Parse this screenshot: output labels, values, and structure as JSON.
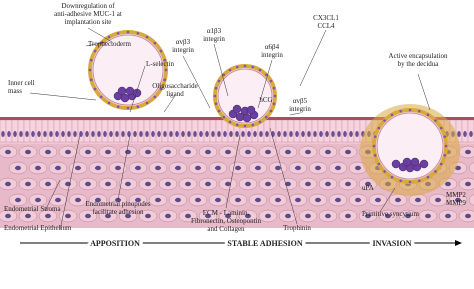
{
  "labels": [
    {
      "lines": [
        "Downregulation of",
        "anti-adhesive MUC-1 at",
        "implantation site"
      ]
    },
    {
      "lines": [
        "Trophectoderm"
      ]
    },
    {
      "lines": [
        "Inner cell",
        "mass"
      ]
    },
    {
      "lines": [
        "L-selectin"
      ]
    },
    {
      "lines": [
        "Oligosaccharide",
        "ligand"
      ]
    },
    {
      "lines": [
        "αvβ3",
        "integrin"
      ]
    },
    {
      "lines": [
        "α1β3",
        "integrin"
      ]
    },
    {
      "lines": [
        "α6β4",
        "integrin"
      ]
    },
    {
      "lines": [
        "CX3CL1",
        "CCL4"
      ]
    },
    {
      "lines": [
        "hCG"
      ]
    },
    {
      "lines": [
        "αvβ5",
        "integrin"
      ]
    },
    {
      "lines": [
        "Active encapsulation",
        "by the decidua"
      ]
    },
    {
      "lines": [
        "uPA"
      ]
    },
    {
      "lines": [
        "MMP2",
        "MMP9"
      ]
    },
    {
      "lines": [
        "Endometrial Stroma"
      ]
    },
    {
      "lines": [
        "Endometrial Epithelium"
      ]
    },
    {
      "lines": [
        "Endometrial pinopodes",
        "facilitate adhesion"
      ]
    },
    {
      "lines": [
        "ECM - Laminin,",
        "Fibronectin, Osteopontin",
        "and Collagen"
      ]
    },
    {
      "lines": [
        "Trophinin"
      ]
    },
    {
      "lines": [
        "Primitive syncytium"
      ]
    }
  ],
  "stages": [
    "APPOSITION",
    "STABLE ADHESION",
    "INVASION"
  ]
}
